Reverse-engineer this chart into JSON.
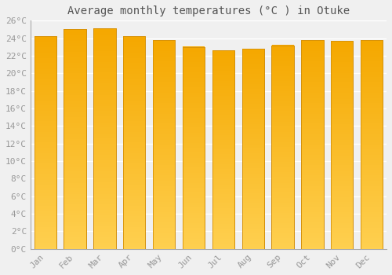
{
  "title": "Average monthly temperatures (°C ) in Otuke",
  "months": [
    "Jan",
    "Feb",
    "Mar",
    "Apr",
    "May",
    "Jun",
    "Jul",
    "Aug",
    "Sep",
    "Oct",
    "Nov",
    "Dec"
  ],
  "values": [
    24.2,
    25.0,
    25.1,
    24.2,
    23.8,
    23.0,
    22.6,
    22.8,
    23.2,
    23.8,
    23.7,
    23.8
  ],
  "bar_color_top": "#F5A800",
  "bar_color_bottom": "#FFD050",
  "bar_edge_color": "#D4900A",
  "background_color": "#F0F0F0",
  "grid_color": "#FFFFFF",
  "text_color": "#999999",
  "ylim": [
    0,
    26
  ],
  "ytick_step": 2,
  "title_fontsize": 10,
  "tick_fontsize": 8,
  "bar_width": 0.75
}
